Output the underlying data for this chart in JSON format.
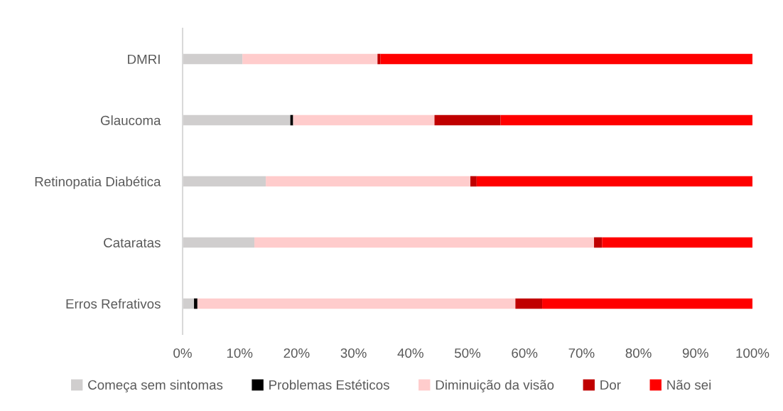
{
  "chart_data": {
    "type": "bar",
    "orientation": "horizontal",
    "stacked": true,
    "categories": [
      "DMRI",
      "Glaucoma",
      "Retinopatia Diabética",
      "Cataratas",
      "Erros Refrativos"
    ],
    "series": [
      {
        "name": "Começa sem sintomas",
        "color": "#d0cece",
        "values": [
          10.5,
          18.9,
          14.6,
          12.6,
          2.0
        ]
      },
      {
        "name": "Problemas Estéticos",
        "color": "#000000",
        "values": [
          0,
          0.5,
          0,
          0,
          0.6
        ]
      },
      {
        "name": "Diminuição da visão",
        "color": "#ffcccc",
        "values": [
          23.7,
          24.8,
          35.9,
          59.6,
          55.8
        ]
      },
      {
        "name": "Dor",
        "color": "#c00000",
        "values": [
          0.5,
          11.6,
          1.1,
          1.4,
          4.7
        ]
      },
      {
        "name": "Não sei",
        "color": "#ff0000",
        "values": [
          65.3,
          44.2,
          48.4,
          26.4,
          36.9
        ]
      }
    ],
    "xlim": [
      0,
      100
    ],
    "xticks": [
      {
        "value": 0,
        "label": "0%"
      },
      {
        "value": 10,
        "label": "10%"
      },
      {
        "value": 20,
        "label": "20%"
      },
      {
        "value": 30,
        "label": "30%"
      },
      {
        "value": 40,
        "label": "40%"
      },
      {
        "value": 50,
        "label": "50%"
      },
      {
        "value": 60,
        "label": "60%"
      },
      {
        "value": 70,
        "label": "70%"
      },
      {
        "value": 80,
        "label": "80%"
      },
      {
        "value": 90,
        "label": "90%"
      },
      {
        "value": 100,
        "label": "100%"
      }
    ],
    "grid": false,
    "legend": "bottom"
  }
}
